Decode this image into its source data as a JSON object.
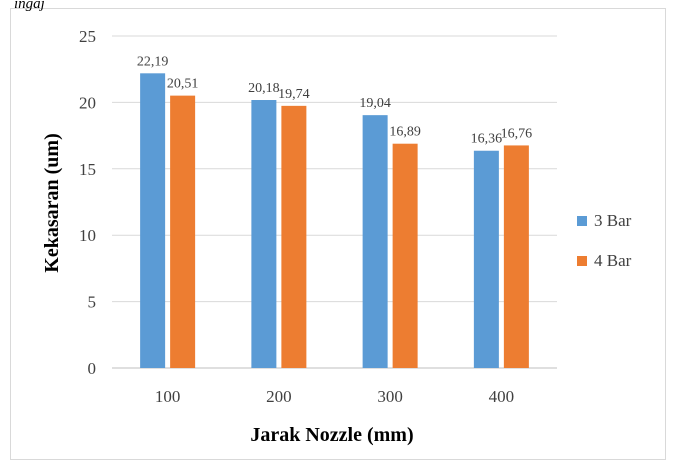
{
  "header_fragment": "ingaj",
  "chart_data": {
    "type": "bar",
    "categories": [
      "100",
      "200",
      "300",
      "400"
    ],
    "series": [
      {
        "name": "3 Bar",
        "values": [
          22.19,
          20.18,
          19.04,
          16.36
        ],
        "labels": [
          "22,19",
          "20,18",
          "19,04",
          "16,36"
        ],
        "color": "#5B9BD5"
      },
      {
        "name": "4 Bar",
        "values": [
          20.51,
          19.74,
          16.89,
          16.76
        ],
        "labels": [
          "20,51",
          "19,74",
          "16,89",
          "16,76"
        ],
        "color": "#ED7D31"
      }
    ],
    "xlabel": "Jarak Nozzle (mm)",
    "ylabel": "Kekasaran (um)",
    "ylim": [
      0,
      25
    ],
    "yticks": [
      0,
      5,
      10,
      15,
      20,
      25
    ],
    "grid": true,
    "legend_position": "right"
  }
}
